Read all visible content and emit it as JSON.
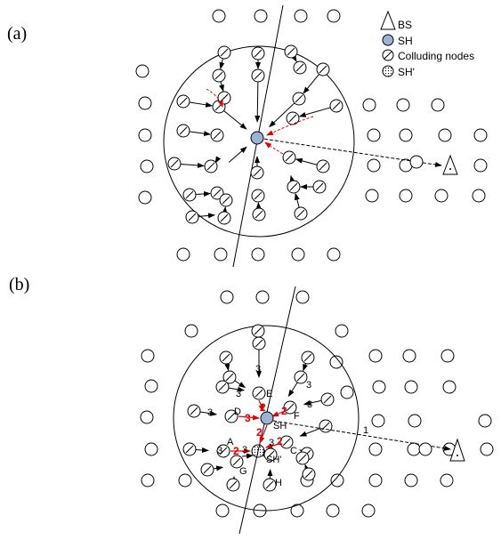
{
  "panels": [
    {
      "label": "(a)"
    },
    {
      "label": "(b)"
    }
  ],
  "legend": {
    "bs": "BS",
    "sh": "SH",
    "colluding": "Colluding nodes",
    "sh_prime": "SH'"
  },
  "panel_b": {
    "node_labels": {
      "E": "E",
      "D": "D",
      "F": "F",
      "A": "A",
      "C": "C",
      "G": "G",
      "H": "H",
      "sh": "SH",
      "sh_prime": "SH'"
    },
    "hop_labels": {
      "h1": "1",
      "h3": "3",
      "h2": "2"
    }
  },
  "colors": {
    "sh_fill": "#9db3d6",
    "attack_red": "#e00000",
    "stroke": "#000000"
  }
}
